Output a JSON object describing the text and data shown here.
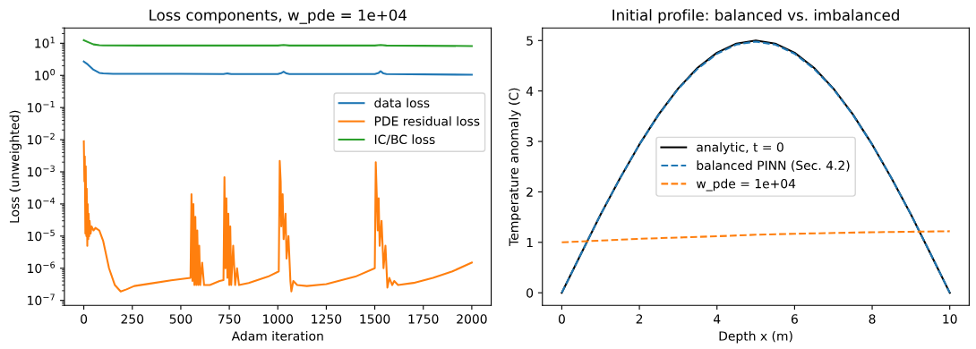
{
  "chart_data": [
    {
      "type": "line",
      "title": "Loss components, w_pde = 1e+04",
      "xlabel": "Adam iteration",
      "ylabel": "Loss (unweighted)",
      "log": "y",
      "grid": false,
      "legend": "right",
      "xlim": [
        -100,
        2100
      ],
      "xticks": [
        0,
        250,
        500,
        750,
        1000,
        1250,
        1500,
        1750,
        2000
      ],
      "ylim": [
        7e-08,
        30
      ],
      "yticks": [
        {
          "value": 1e-07,
          "label": "10$^{−7}$"
        },
        {
          "value": 1e-06,
          "label": "10$^{−6}$"
        },
        {
          "value": 1e-05,
          "label": "10$^{−5}$"
        },
        {
          "value": 0.0001,
          "label": "10$^{−4}$"
        },
        {
          "value": 0.001,
          "label": "10$^{−3}$"
        },
        {
          "value": 0.01,
          "label": "10$^{−2}$"
        },
        {
          "value": 0.1,
          "label": "10$^{−1}$"
        },
        {
          "value": 1,
          "label": "10$^{0}$"
        },
        {
          "value": 10,
          "label": "10$^{1}$"
        }
      ],
      "series": [
        {
          "name": "data loss",
          "color": "#1f77b4",
          "x": [
            0,
            20,
            50,
            80,
            100,
            150,
            300,
            500,
            720,
            740,
            760,
            1000,
            1020,
            1030,
            1045,
            1060,
            1500,
            1520,
            1530,
            1545,
            1560,
            2000
          ],
          "values": [
            2.7,
            2.2,
            1.5,
            1.2,
            1.15,
            1.12,
            1.12,
            1.12,
            1.1,
            1.15,
            1.1,
            1.1,
            1.2,
            1.3,
            1.15,
            1.1,
            1.1,
            1.2,
            1.35,
            1.15,
            1.1,
            1.05
          ]
        },
        {
          "name": "PDE residual loss",
          "color": "#ff7f0e",
          "x": [
            0,
            3,
            5,
            8,
            10,
            13,
            15,
            18,
            20,
            23,
            25,
            28,
            30,
            35,
            40,
            50,
            60,
            80,
            100,
            130,
            160,
            190,
            220,
            260,
            350,
            450,
            550,
            555,
            560,
            565,
            570,
            575,
            580,
            585,
            590,
            595,
            600,
            610,
            620,
            650,
            700,
            720,
            725,
            730,
            735,
            740,
            745,
            750,
            755,
            760,
            770,
            780,
            790,
            800,
            850,
            950,
            1005,
            1010,
            1015,
            1018,
            1025,
            1030,
            1040,
            1045,
            1055,
            1065,
            1070,
            1080,
            1100,
            1150,
            1250,
            1400,
            1500,
            1505,
            1510,
            1515,
            1520,
            1525,
            1535,
            1545,
            1555,
            1565,
            1575,
            1590,
            1600,
            1620,
            1700,
            1800,
            1900,
            2000
          ],
          "values": [
            0.0089,
            0.0005,
            0.003,
            1.2e-05,
            0.0015,
            1e-05,
            0.0003,
            5e-06,
            0.0001,
            8e-06,
            5e-05,
            1e-05,
            3e-05,
            1.2e-05,
            2e-05,
            1.5e-05,
            1.8e-05,
            1.5e-05,
            7e-06,
            1e-06,
            3e-07,
            1.9e-07,
            2.2e-07,
            2.8e-07,
            3.4e-07,
            4.2e-07,
            5e-07,
            0.0002,
            4e-07,
            0.0001,
            3e-07,
            4e-05,
            3e-07,
            1.5e-05,
            3e-07,
            5e-06,
            3e-07,
            1.5e-06,
            3e-07,
            3e-07,
            4e-07,
            4.3e-07,
            0.00068,
            1e-06,
            0.00015,
            5e-07,
            5e-05,
            3e-07,
            2e-05,
            3e-07,
            5e-06,
            3e-07,
            1e-06,
            3e-07,
            3.5e-07,
            5.5e-07,
            8e-07,
            0.0022,
            0.0005,
            2e-05,
            0.0002,
            8e-06,
            5e-05,
            2e-06,
            1e-05,
            4e-07,
            1.9e-07,
            4e-07,
            3e-07,
            2.8e-07,
            3.2e-07,
            5.5e-07,
            1e-06,
            0.002,
            0.0002,
            1.5e-05,
            0.00015,
            5e-06,
            3e-05,
            1e-06,
            5e-06,
            2.5e-07,
            5e-07,
            3e-07,
            4e-07,
            3e-07,
            3.5e-07,
            5e-07,
            8e-07,
            1.5e-06
          ]
        },
        {
          "name": "IC/BC loss",
          "color": "#2ca02c",
          "x": [
            0,
            20,
            50,
            80,
            100,
            300,
            1000,
            1030,
            1060,
            1500,
            1530,
            1560,
            2000
          ],
          "values": [
            12.4,
            11,
            9.2,
            8.7,
            8.6,
            8.5,
            8.5,
            8.8,
            8.5,
            8.5,
            8.8,
            8.5,
            8.2
          ]
        }
      ]
    },
    {
      "type": "line",
      "title": "Initial profile: balanced vs. imbalanced",
      "xlabel": "Depth x (m)",
      "ylabel": "Temperature anomaly (C)",
      "grid": false,
      "legend": "center",
      "xlim": [
        -0.5,
        10.5
      ],
      "xticks": [
        0,
        2,
        4,
        6,
        8,
        10
      ],
      "ylim": [
        -0.25,
        5.25
      ],
      "yticks": [
        0,
        1,
        2,
        3,
        4,
        5
      ],
      "series": [
        {
          "name": "analytic, t = 0",
          "color": "#000000",
          "line_style": "solid",
          "x": [
            0,
            0.5,
            1,
            1.5,
            2,
            2.5,
            3,
            3.5,
            4,
            4.5,
            5,
            5.5,
            6,
            6.5,
            7,
            7.5,
            8,
            8.5,
            9,
            9.5,
            10
          ],
          "values": [
            0,
            0.78,
            1.55,
            2.27,
            2.94,
            3.54,
            4.05,
            4.46,
            4.76,
            4.94,
            5.0,
            4.94,
            4.76,
            4.46,
            4.05,
            3.54,
            2.94,
            2.27,
            1.55,
            0.78,
            0
          ]
        },
        {
          "name": "balanced PINN (Sec. 4.2)",
          "color": "#1f77b4",
          "line_style": "dashed",
          "x": [
            0,
            0.5,
            1,
            1.5,
            2,
            2.5,
            3,
            3.5,
            4,
            4.5,
            5,
            5.5,
            6,
            6.5,
            7,
            7.5,
            8,
            8.5,
            9,
            9.5,
            10
          ],
          "values": [
            0,
            0.78,
            1.55,
            2.27,
            2.94,
            3.53,
            4.04,
            4.44,
            4.74,
            4.92,
            4.98,
            4.92,
            4.74,
            4.44,
            4.04,
            3.53,
            2.94,
            2.27,
            1.55,
            0.78,
            0
          ]
        },
        {
          "name": "w_pde = 1e+04",
          "color": "#ff7f0e",
          "line_style": "dashed",
          "x": [
            0,
            2,
            4,
            5,
            6,
            8,
            10
          ],
          "values": [
            1.0,
            1.07,
            1.12,
            1.15,
            1.17,
            1.2,
            1.22
          ]
        }
      ]
    }
  ]
}
